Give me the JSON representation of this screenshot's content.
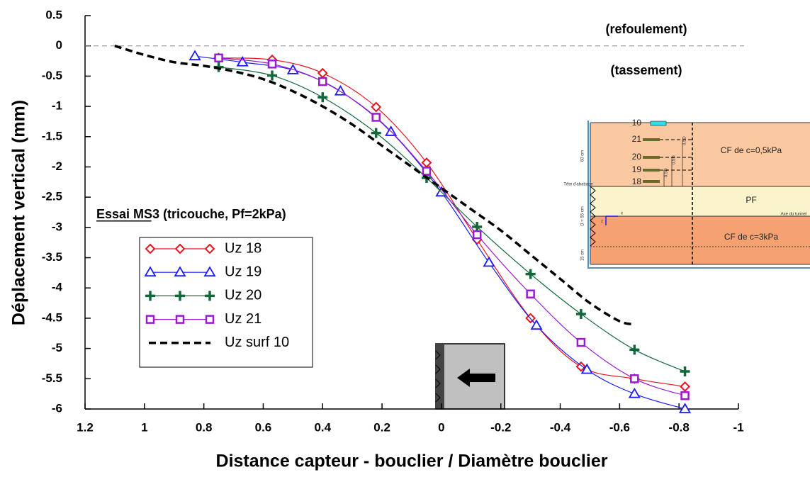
{
  "chart_data": {
    "type": "line",
    "x_label": "Distance capteur - bouclier / Diamètre bouclier",
    "y_label": "Déplacement vertical (mm)",
    "xlim": [
      1.2,
      -1
    ],
    "ylim": [
      -6,
      0.5
    ],
    "xticks": [
      1.2,
      1,
      0.8,
      0.6,
      0.4,
      0.2,
      0,
      -0.2,
      -0.4,
      -0.6,
      -0.8,
      -1
    ],
    "yticks": [
      0.5,
      0,
      -0.5,
      -1,
      -1.5,
      -2,
      -2.5,
      -3,
      -3.5,
      -4,
      -4.5,
      -5,
      -5.5,
      -6
    ],
    "reference_lines": [
      0
    ],
    "annotations": [
      "(refoulement)",
      "(tassement)",
      "Essai MS3 (tricouche, Pf=2kPa)"
    ],
    "series": [
      {
        "name": "Uz 18",
        "color": "#e8141c",
        "marker": "diamond",
        "x": [
          0.75,
          0.57,
          0.4,
          0.22,
          0.05,
          -0.12,
          -0.3,
          -0.47,
          -0.65,
          -0.82
        ],
        "values": [
          -0.2,
          -0.23,
          -0.45,
          -1.01,
          -1.93,
          -3.2,
          -4.5,
          -5.3,
          -5.5,
          -5.63
        ]
      },
      {
        "name": "Uz 19",
        "color": "#1a1aff",
        "marker": "triangle",
        "x": [
          0.83,
          0.67,
          0.5,
          0.34,
          0.17,
          0,
          -0.16,
          -0.32,
          -0.49,
          -0.65,
          -0.82
        ],
        "values": [
          -0.17,
          -0.27,
          -0.4,
          -0.75,
          -1.42,
          -2.42,
          -3.58,
          -4.62,
          -5.35,
          -5.75,
          -6
        ]
      },
      {
        "name": "Uz 20",
        "color": "#12683a",
        "marker": "plus",
        "x": [
          0.75,
          0.57,
          0.4,
          0.22,
          0.05,
          -0.12,
          -0.3,
          -0.47,
          -0.65,
          -0.82
        ],
        "values": [
          -0.35,
          -0.49,
          -0.85,
          -1.44,
          -2.18,
          -2.99,
          -3.77,
          -4.43,
          -5.02,
          -5.38
        ]
      },
      {
        "name": "Uz 21",
        "color": "#9a1ad0",
        "marker": "square",
        "x": [
          0.75,
          0.57,
          0.4,
          0.22,
          0.05,
          -0.12,
          -0.3,
          -0.47,
          -0.65,
          -0.82
        ],
        "values": [
          -0.2,
          -0.3,
          -0.59,
          -1.18,
          -2.07,
          -3.12,
          -4.1,
          -4.9,
          -5.5,
          -5.78
        ]
      },
      {
        "name": "Uz surf 10",
        "color": "#000000",
        "marker": "none",
        "dashed": true,
        "x": [
          1.1,
          1,
          0.9,
          0.8,
          0.7,
          0.6,
          0.5,
          0.4,
          0.3,
          0.2,
          0.1,
          0,
          -0.1,
          -0.2,
          -0.3,
          -0.4,
          -0.5,
          -0.6,
          -0.65
        ],
        "values": [
          0,
          -0.15,
          -0.27,
          -0.33,
          -0.42,
          -0.55,
          -0.75,
          -1,
          -1.3,
          -1.65,
          -2,
          -2.35,
          -2.7,
          -3.05,
          -3.45,
          -3.85,
          -4.25,
          -4.55,
          -4.6
        ]
      }
    ]
  },
  "inset": {
    "sensors": [
      "10",
      "21",
      "20",
      "19",
      "18"
    ],
    "layers": [
      "CF de c=0,5kPa",
      "PF",
      "CF de c=3kPa"
    ],
    "notes": [
      "60 cm",
      "Tête d'abattage",
      "D = 55 cm",
      "15 cm",
      "Axe du tunnel",
      "x",
      "z",
      "0,5D",
      "0,5D",
      "0,5D"
    ]
  }
}
